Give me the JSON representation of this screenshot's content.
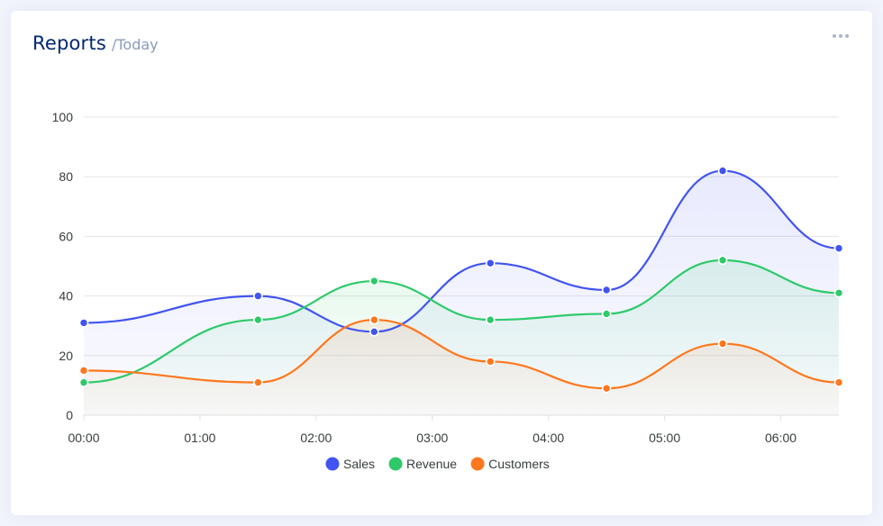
{
  "header": {
    "title": "Reports",
    "subtitle": "/Today",
    "menu_icon": "more-horizontal-icon"
  },
  "chart_data": {
    "type": "area",
    "x": [
      "00:00",
      "01:00",
      "02:00",
      "03:00",
      "04:00",
      "05:00",
      "06:00"
    ],
    "series": [
      {
        "name": "Sales",
        "color": "#4154f1",
        "points": [
          [
            0,
            31
          ],
          [
            1.5,
            40
          ],
          [
            2.5,
            28
          ],
          [
            3.5,
            51
          ],
          [
            4.5,
            42
          ],
          [
            5.5,
            82
          ],
          [
            6.5,
            56
          ]
        ]
      },
      {
        "name": "Revenue",
        "color": "#2eca6a",
        "points": [
          [
            0,
            11
          ],
          [
            1.5,
            32
          ],
          [
            2.5,
            45
          ],
          [
            3.5,
            32
          ],
          [
            4.5,
            34
          ],
          [
            5.5,
            52
          ],
          [
            6.5,
            41
          ]
        ]
      },
      {
        "name": "Customers",
        "color": "#ff771d",
        "points": [
          [
            0,
            15
          ],
          [
            1.5,
            11
          ],
          [
            2.5,
            32
          ],
          [
            3.5,
            18
          ],
          [
            4.5,
            9
          ],
          [
            5.5,
            24
          ],
          [
            6.5,
            11
          ]
        ]
      }
    ],
    "y_ticks": [
      0,
      20,
      40,
      60,
      80,
      100
    ],
    "ylim": [
      0,
      100
    ],
    "xlim": [
      "00:00",
      "06:30"
    ],
    "grid": true,
    "legend": "bottom-center"
  }
}
